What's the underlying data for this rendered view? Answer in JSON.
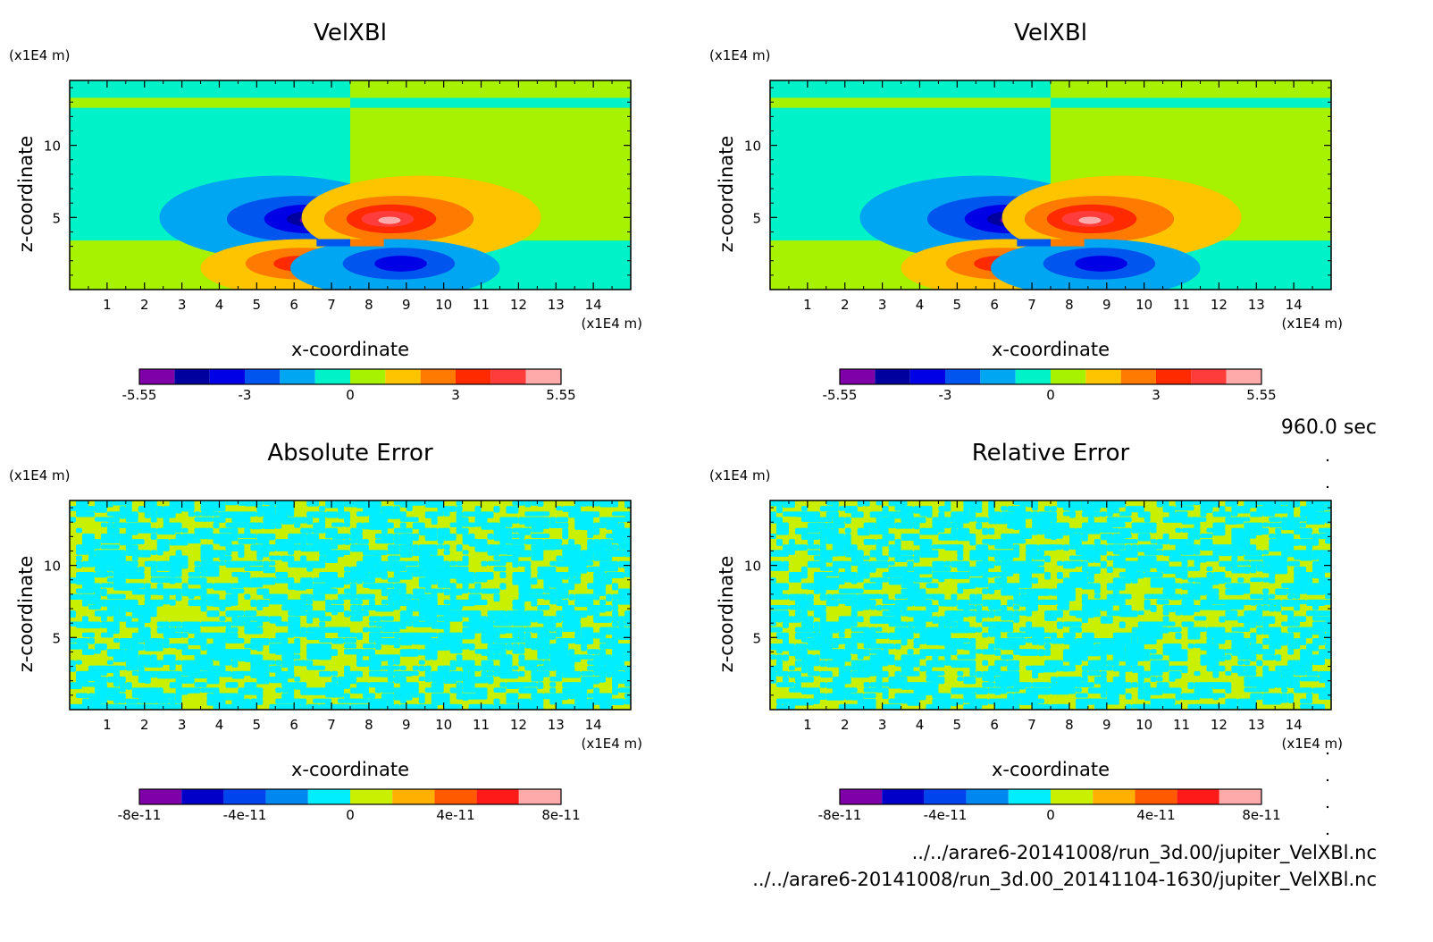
{
  "time_label": "960.0 sec",
  "file_paths": [
    "../../arare6-20141008/run_3d.00/jupiter_VelXBl.nc",
    "../../arare6-20141008/run_3d.00_20141104-1630/jupiter_VelXBl.nc"
  ],
  "chart_data": [
    {
      "type": "heatmap",
      "title": "VelXBl",
      "xlabel": "x-coordinate",
      "ylabel": "z-coordinate",
      "x_unit": "(x1E4 m)",
      "y_unit": "(x1E4 m)",
      "xlim": [
        0,
        15
      ],
      "ylim": [
        0,
        14.5
      ],
      "xticks": [
        "1",
        "2",
        "3",
        "4",
        "5",
        "6",
        "7",
        "8",
        "9",
        "10",
        "11",
        "12",
        "13",
        "14"
      ],
      "yticks": [
        "5",
        "10"
      ],
      "colorbar": {
        "levels": 12,
        "tick_labels": [
          "-5.55",
          "-3",
          "0",
          "3",
          "5.55"
        ],
        "colors": [
          "#7f00a8",
          "#00009e",
          "#0000e6",
          "#0055ee",
          "#00a6f2",
          "#00f2c8",
          "#a6f200",
          "#ffc400",
          "#ff7a00",
          "#ff2a00",
          "#ff3c3c",
          "#ffaaaa"
        ]
      }
    },
    {
      "type": "heatmap",
      "title": "VelXBl",
      "xlabel": "x-coordinate",
      "ylabel": "z-coordinate",
      "x_unit": "(x1E4 m)",
      "y_unit": "(x1E4 m)",
      "xlim": [
        0,
        15
      ],
      "ylim": [
        0,
        14.5
      ],
      "xticks": [
        "1",
        "2",
        "3",
        "4",
        "5",
        "6",
        "7",
        "8",
        "9",
        "10",
        "11",
        "12",
        "13",
        "14"
      ],
      "yticks": [
        "5",
        "10"
      ],
      "colorbar": {
        "levels": 12,
        "tick_labels": [
          "-5.55",
          "-3",
          "0",
          "3",
          "5.55"
        ],
        "colors": [
          "#7f00a8",
          "#00009e",
          "#0000e6",
          "#0055ee",
          "#00a6f2",
          "#00f2c8",
          "#a6f200",
          "#ffc400",
          "#ff7a00",
          "#ff2a00",
          "#ff3c3c",
          "#ffaaaa"
        ]
      }
    },
    {
      "type": "heatmap",
      "title": "Absolute Error",
      "xlabel": "x-coordinate",
      "ylabel": "z-coordinate",
      "x_unit": "(x1E4 m)",
      "y_unit": "(x1E4 m)",
      "xlim": [
        0,
        15
      ],
      "ylim": [
        0,
        14.5
      ],
      "xticks": [
        "1",
        "2",
        "3",
        "4",
        "5",
        "6",
        "7",
        "8",
        "9",
        "10",
        "11",
        "12",
        "13",
        "14"
      ],
      "yticks": [
        "5",
        "10"
      ],
      "colorbar": {
        "levels": 10,
        "tick_labels": [
          "-8e-11",
          "-4e-11",
          "0",
          "4e-11",
          "8e-11"
        ],
        "colors": [
          "#7f00a8",
          "#0000c8",
          "#0044ee",
          "#0088f0",
          "#00eeff",
          "#c8f000",
          "#ffb000",
          "#ff5a00",
          "#ff1a1a",
          "#ffaaaa"
        ]
      }
    },
    {
      "type": "heatmap",
      "title": "Relative Error",
      "xlabel": "x-coordinate",
      "ylabel": "z-coordinate",
      "x_unit": "(x1E4 m)",
      "y_unit": "(x1E4 m)",
      "xlim": [
        0,
        15
      ],
      "ylim": [
        0,
        14.5
      ],
      "xticks": [
        "1",
        "2",
        "3",
        "4",
        "5",
        "6",
        "7",
        "8",
        "9",
        "10",
        "11",
        "12",
        "13",
        "14"
      ],
      "yticks": [
        "5",
        "10"
      ],
      "colorbar": {
        "levels": 10,
        "tick_labels": [
          "-8e-11",
          "-4e-11",
          "0",
          "4e-11",
          "8e-11"
        ],
        "colors": [
          "#7f00a8",
          "#0000c8",
          "#0044ee",
          "#0088f0",
          "#00eeff",
          "#c8f000",
          "#ffb000",
          "#ff5a00",
          "#ff1a1a",
          "#ffaaaa"
        ]
      }
    }
  ]
}
